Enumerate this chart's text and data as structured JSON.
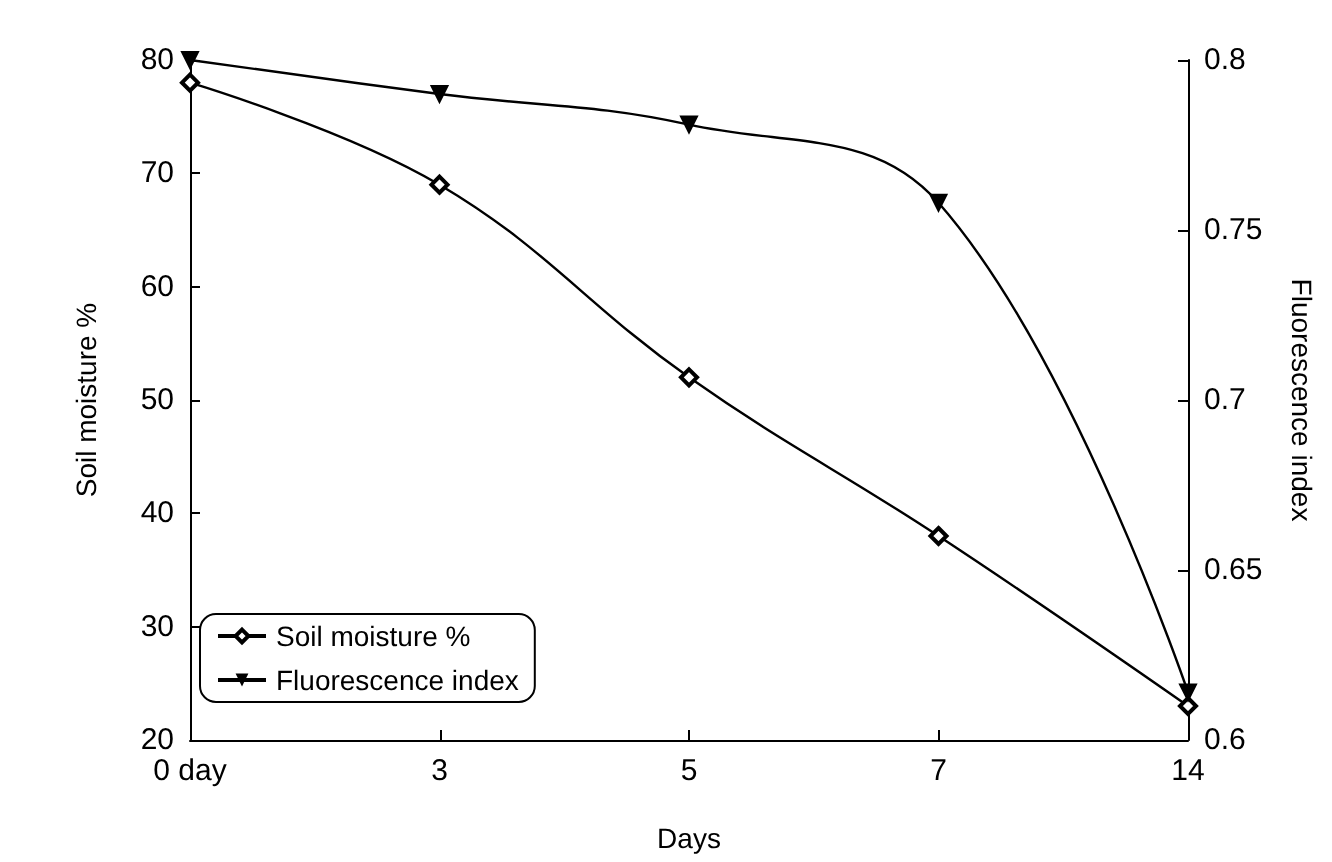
{
  "chart_data": {
    "type": "line",
    "xlabel": "Days",
    "ylabel": "Soil moisture %",
    "y2label": "Fluorescence index",
    "categories": [
      "0 day",
      "3",
      "5",
      "7",
      "14"
    ],
    "series": [
      {
        "name": "Soil moisture %",
        "color": "#000000",
        "marker": "diamond",
        "values": [
          78,
          69,
          52,
          38,
          23
        ]
      },
      {
        "name": "Fluorescence index",
        "color": "#000000",
        "marker": "triangle",
        "axis": "y2",
        "values": [
          0.8,
          0.79,
          0.781,
          0.758,
          0.614
        ]
      }
    ],
    "ylim": [
      20,
      80
    ],
    "yticks": [
      20,
      30,
      40,
      50,
      60,
      70,
      80
    ],
    "y2lim": [
      0.6,
      0.8
    ],
    "y2ticks": [
      0.6,
      0.65,
      0.7,
      0.75,
      0.8
    ],
    "grid": false,
    "legend": "bottom left"
  }
}
